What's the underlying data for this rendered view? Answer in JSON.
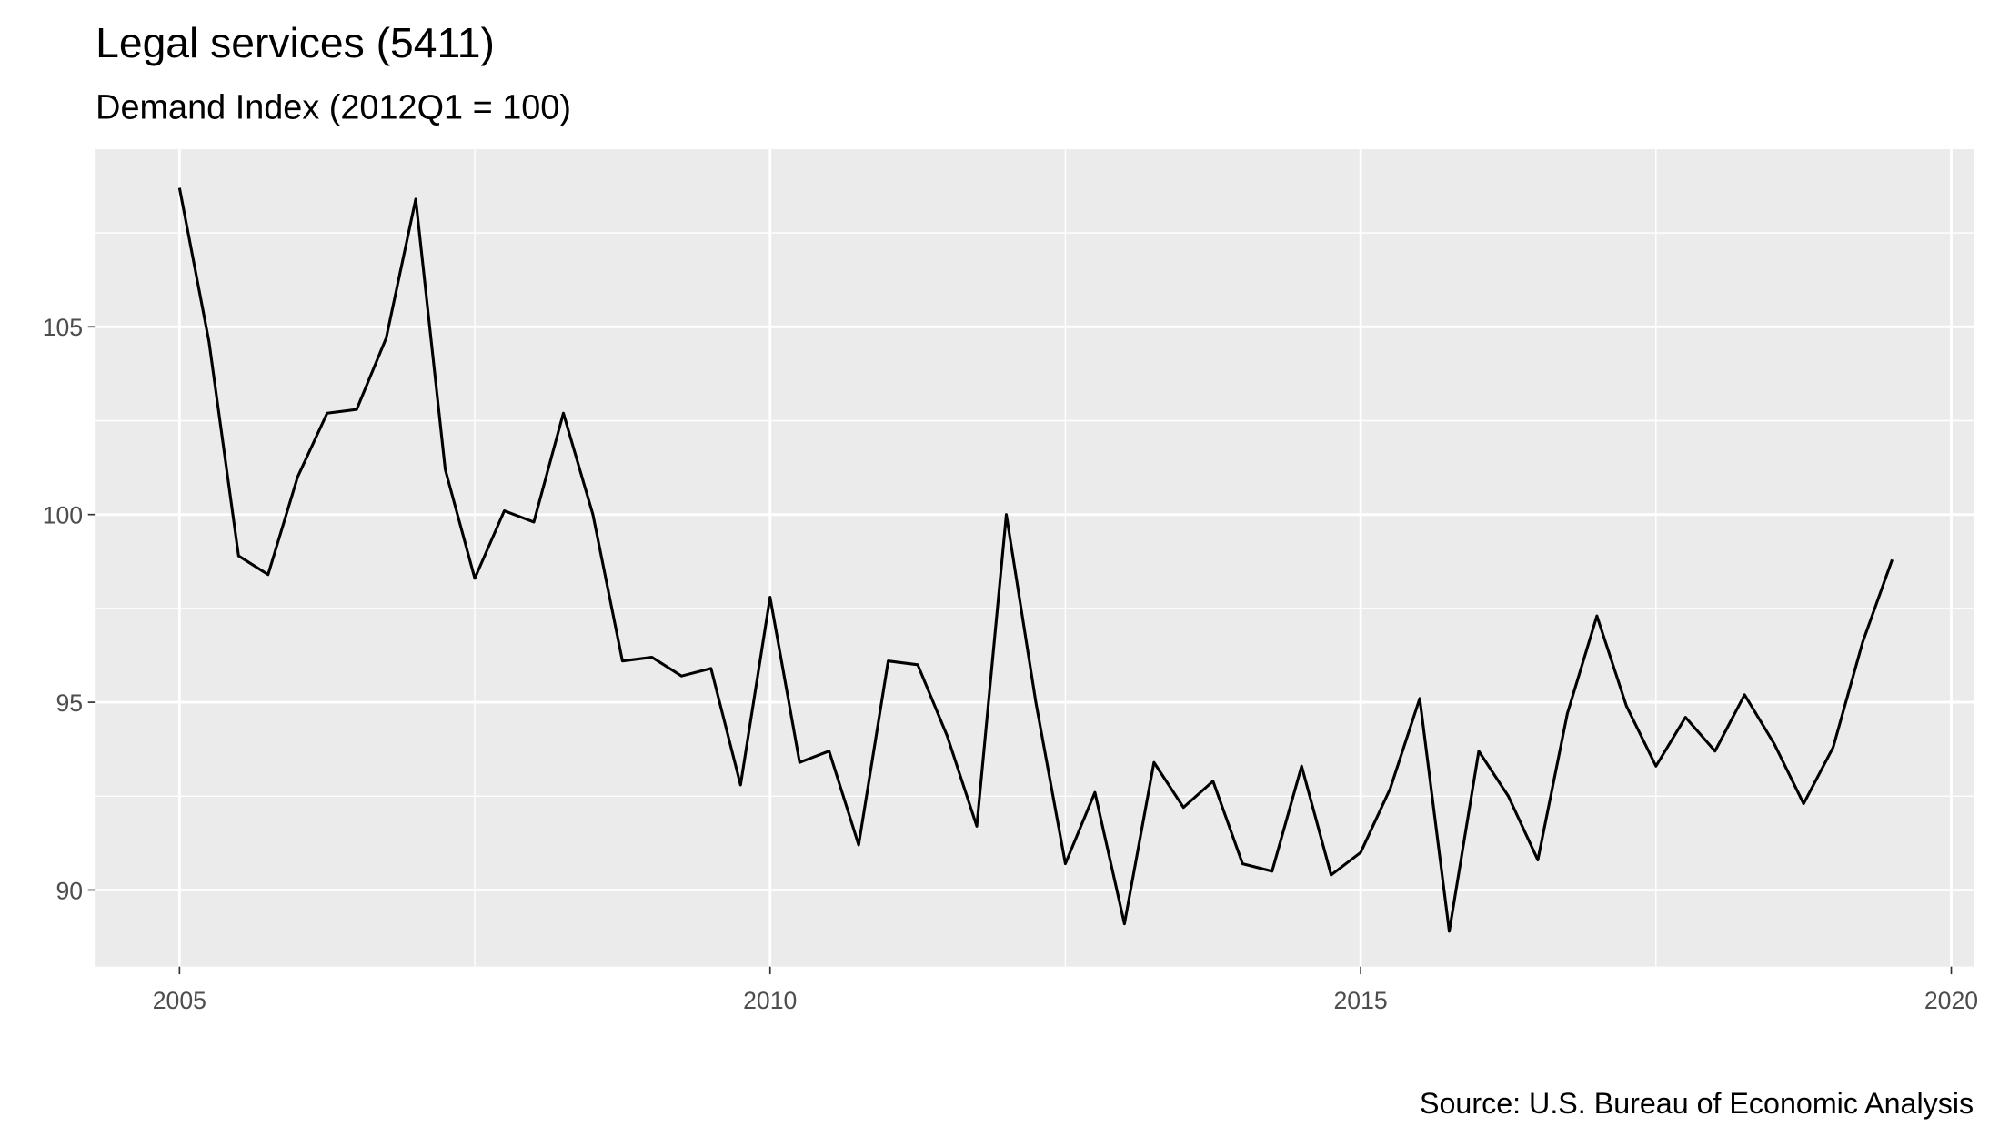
{
  "chart_data": {
    "type": "line",
    "title": "Legal services (5411)",
    "subtitle": "Demand Index (2012Q1 = 100)",
    "caption": "Source: U.S. Bureau of Economic Analysis",
    "x": [
      2005,
      2005.25,
      2005.5,
      2005.75,
      2006,
      2006.25,
      2006.5,
      2006.75,
      2007,
      2007.25,
      2007.5,
      2007.75,
      2008,
      2008.25,
      2008.5,
      2008.75,
      2009,
      2009.25,
      2009.5,
      2009.75,
      2010,
      2010.25,
      2010.5,
      2010.75,
      2011,
      2011.25,
      2011.5,
      2011.75,
      2012,
      2012.25,
      2012.5,
      2012.75,
      2013,
      2013.25,
      2013.5,
      2013.75,
      2014,
      2014.25,
      2014.5,
      2014.75,
      2015,
      2015.25,
      2015.5,
      2015.75,
      2016,
      2016.25,
      2016.5,
      2016.75,
      2017,
      2017.25,
      2017.5,
      2017.75,
      2018,
      2018.25,
      2018.5,
      2018.75,
      2019,
      2019.25,
      2019.5
    ],
    "series": [
      {
        "name": "Demand Index",
        "color": "#000000",
        "values": [
          108.7,
          104.6,
          98.9,
          98.4,
          101.0,
          102.7,
          102.8,
          104.7,
          108.4,
          101.2,
          98.3,
          100.1,
          99.8,
          102.7,
          100.0,
          96.1,
          96.2,
          95.7,
          95.9,
          92.8,
          97.8,
          93.4,
          93.7,
          91.2,
          96.1,
          96.0,
          94.1,
          91.7,
          100.0,
          95.0,
          90.7,
          92.6,
          89.1,
          93.4,
          92.2,
          92.9,
          90.7,
          90.5,
          93.3,
          90.4,
          91.0,
          92.7,
          95.1,
          88.9,
          93.7,
          92.5,
          90.8,
          94.7,
          97.3,
          94.9,
          93.3,
          94.6,
          93.7,
          95.2,
          93.9,
          92.3,
          93.8,
          96.6,
          98.8
        ]
      }
    ],
    "xlim": [
      2004.29,
      2020.19
    ],
    "ylim": [
      87.96,
      109.73
    ],
    "xticks": [
      2005,
      2010,
      2015,
      2020
    ],
    "yticks": [
      90,
      95,
      100,
      105
    ],
    "grid": true
  }
}
